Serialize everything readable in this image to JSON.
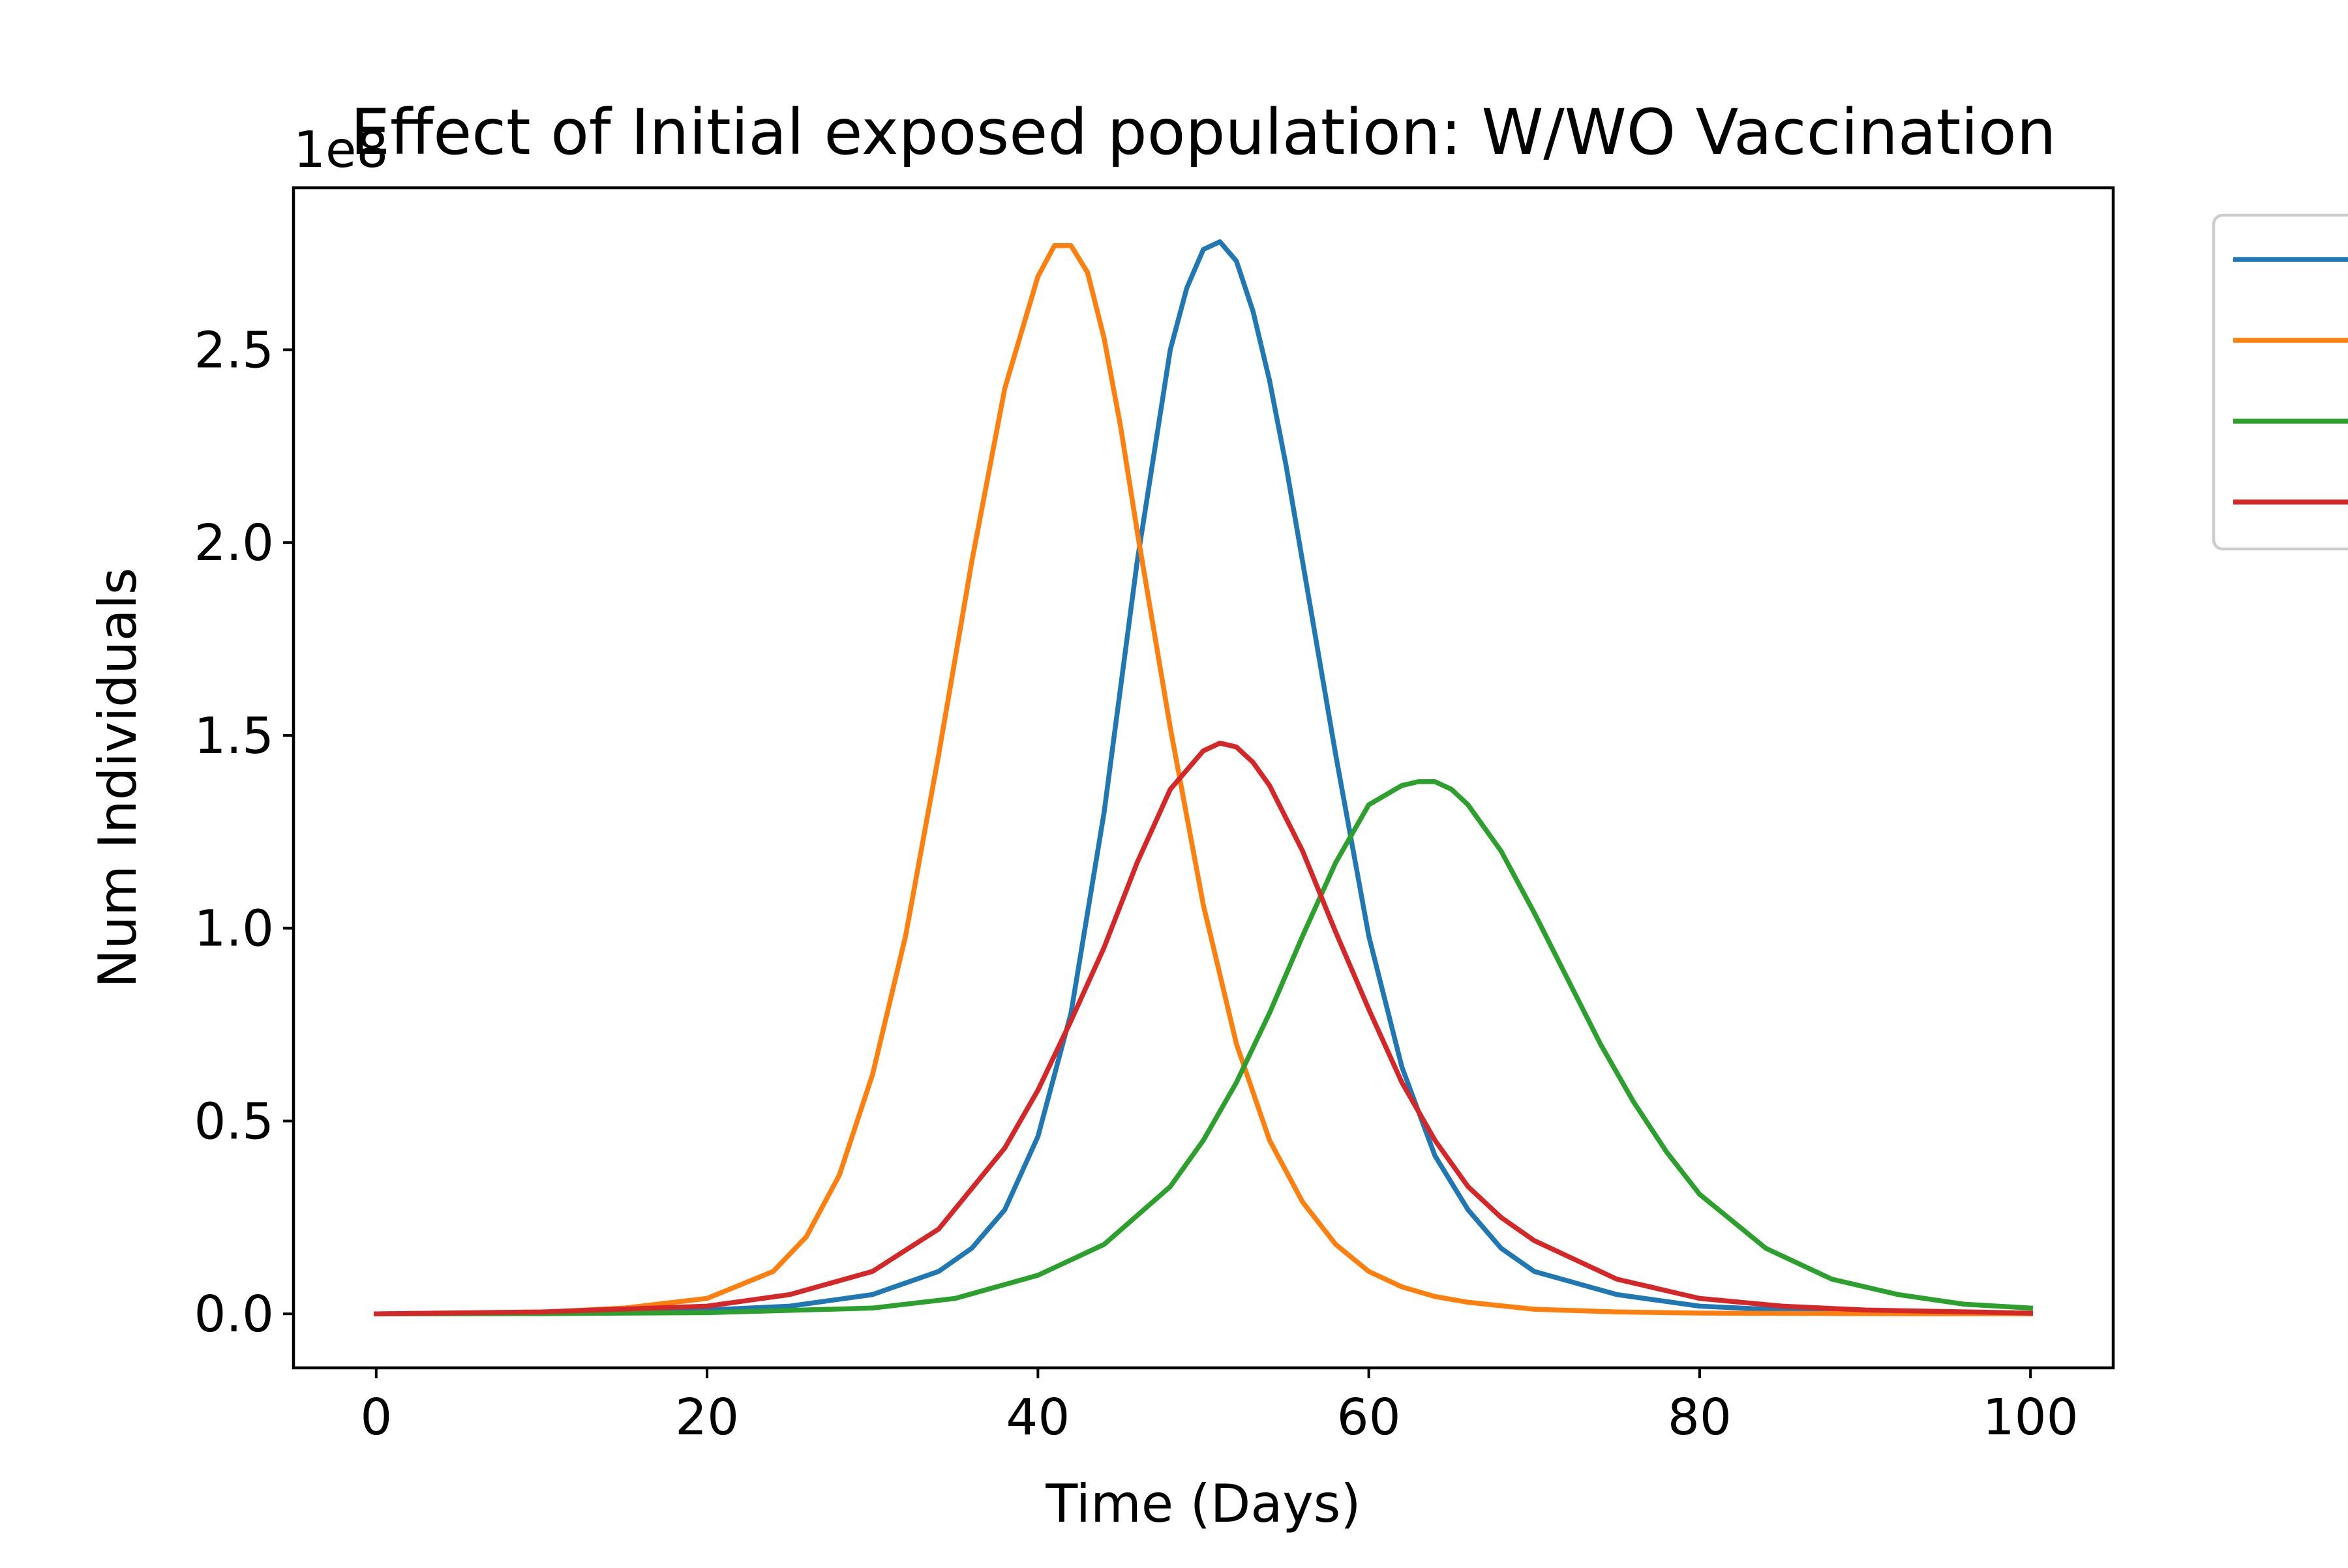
{
  "chart_data": {
    "type": "line",
    "title": "Effect of Initial exposed population: W/WO Vaccination",
    "xlabel": "Time (Days)",
    "ylabel": "Num Individuals",
    "y_offset_text": "1e8",
    "y_scale": 100000000,
    "xlim": [
      -5,
      105
    ],
    "ylim": [
      -0.14,
      2.92
    ],
    "xticks": [
      0,
      20,
      40,
      60,
      80,
      100
    ],
    "xtick_labels": [
      "0",
      "20",
      "40",
      "60",
      "80",
      "100"
    ],
    "yticks": [
      0.0,
      0.5,
      1.0,
      1.5,
      2.0,
      2.5
    ],
    "ytick_labels": [
      "0.0",
      "0.5",
      "1.0",
      "1.5",
      "2.0",
      "2.5"
    ],
    "grid": false,
    "legend": "top-right, outside plot area",
    "series": [
      {
        "color": "#1f77b4",
        "x": [
          0,
          10,
          20,
          25,
          30,
          34,
          36,
          38,
          40,
          42,
          44,
          46,
          48,
          49,
          50,
          51,
          52,
          53,
          54,
          55,
          56,
          58,
          60,
          62,
          64,
          66,
          68,
          70,
          75,
          80,
          85,
          90,
          100
        ],
        "y": [
          0.0,
          0.002,
          0.01,
          0.02,
          0.05,
          0.11,
          0.17,
          0.27,
          0.46,
          0.78,
          1.3,
          1.95,
          2.5,
          2.66,
          2.76,
          2.78,
          2.73,
          2.6,
          2.42,
          2.2,
          1.95,
          1.45,
          0.98,
          0.64,
          0.41,
          0.27,
          0.17,
          0.11,
          0.05,
          0.02,
          0.01,
          0.004,
          0.001
        ]
      },
      {
        "color": "#ff7f0e",
        "x": [
          0,
          10,
          15,
          20,
          24,
          26,
          28,
          30,
          32,
          34,
          36,
          38,
          40,
          41,
          42,
          43,
          44,
          45,
          46,
          48,
          50,
          52,
          54,
          56,
          58,
          60,
          62,
          64,
          66,
          70,
          75,
          80,
          90,
          100
        ],
        "y": [
          0.0,
          0.004,
          0.015,
          0.04,
          0.11,
          0.2,
          0.36,
          0.62,
          0.98,
          1.45,
          1.95,
          2.4,
          2.69,
          2.77,
          2.77,
          2.7,
          2.53,
          2.3,
          2.03,
          1.52,
          1.06,
          0.7,
          0.45,
          0.29,
          0.18,
          0.11,
          0.07,
          0.045,
          0.03,
          0.012,
          0.005,
          0.002,
          0.0005,
          0.0001
        ]
      },
      {
        "color": "#2ca02c",
        "x": [
          0,
          10,
          20,
          30,
          35,
          40,
          44,
          48,
          50,
          52,
          54,
          56,
          58,
          60,
          62,
          63,
          64,
          65,
          66,
          68,
          70,
          72,
          74,
          76,
          78,
          80,
          84,
          88,
          92,
          96,
          100
        ],
        "y": [
          0.0,
          0.0005,
          0.003,
          0.015,
          0.04,
          0.1,
          0.18,
          0.33,
          0.45,
          0.6,
          0.78,
          0.98,
          1.17,
          1.32,
          1.37,
          1.38,
          1.38,
          1.36,
          1.32,
          1.2,
          1.04,
          0.87,
          0.7,
          0.55,
          0.42,
          0.31,
          0.17,
          0.09,
          0.05,
          0.025,
          0.015
        ]
      },
      {
        "color": "#d62728",
        "x": [
          0,
          10,
          20,
          25,
          30,
          34,
          38,
          40,
          42,
          44,
          46,
          48,
          50,
          51,
          52,
          53,
          54,
          56,
          58,
          60,
          62,
          64,
          66,
          68,
          70,
          75,
          80,
          85,
          90,
          100
        ],
        "y": [
          0.0,
          0.005,
          0.02,
          0.05,
          0.11,
          0.22,
          0.43,
          0.58,
          0.76,
          0.95,
          1.17,
          1.36,
          1.46,
          1.48,
          1.47,
          1.43,
          1.37,
          1.2,
          0.99,
          0.79,
          0.6,
          0.45,
          0.33,
          0.25,
          0.19,
          0.09,
          0.04,
          0.02,
          0.01,
          0.002
        ]
      }
    ]
  }
}
